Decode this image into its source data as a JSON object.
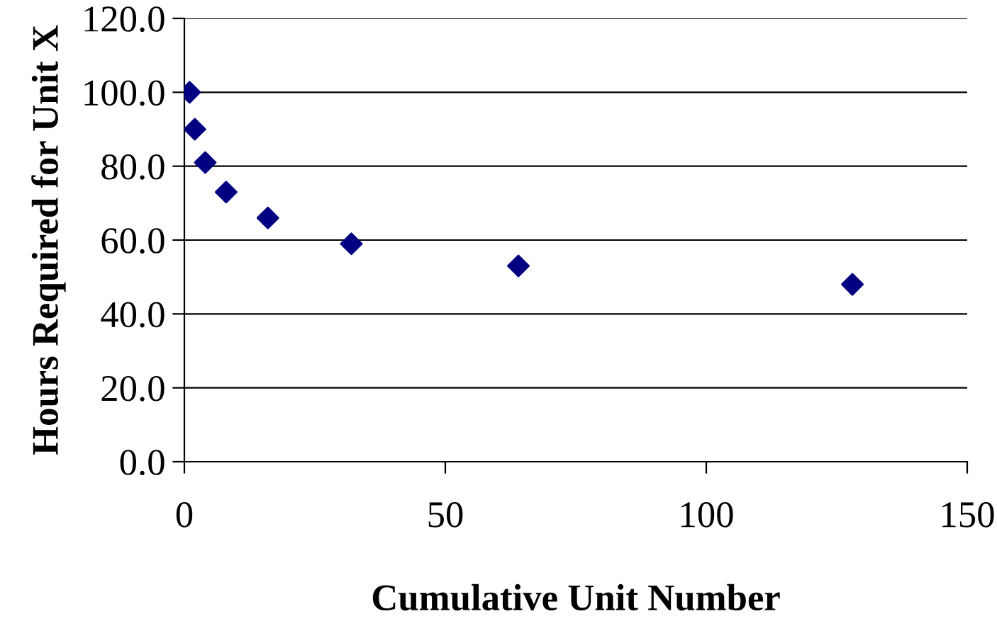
{
  "chart_data": {
    "type": "scatter",
    "xlabel": "Cumulative Unit Number",
    "ylabel": "Hours Required for Unit X",
    "x": [
      1,
      2,
      4,
      8,
      16,
      32,
      64,
      128
    ],
    "series": [
      {
        "color": "#000080",
        "values": [
          100,
          90,
          81,
          73,
          66,
          59,
          53,
          48
        ]
      }
    ],
    "xlim": [
      0,
      150
    ],
    "xticks": [
      0,
      50,
      100,
      150
    ],
    "ylim": [
      0,
      120
    ],
    "yticks": [
      {
        "value": 0,
        "label": "0.0"
      },
      {
        "value": 20,
        "label": "20.0"
      },
      {
        "value": 40,
        "label": "40.0"
      },
      {
        "value": 60,
        "label": "60.0"
      },
      {
        "value": 80,
        "label": "80.0"
      },
      {
        "value": 100,
        "label": "100.0"
      },
      {
        "value": 120,
        "label": "120.0"
      }
    ],
    "grid": "y",
    "marker": "diamond",
    "legend": false
  }
}
